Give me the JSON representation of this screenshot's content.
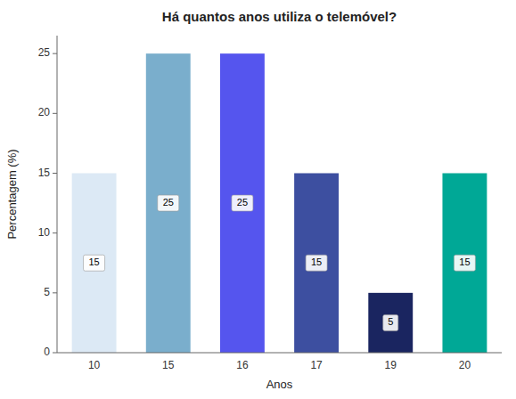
{
  "chart_data": {
    "type": "bar",
    "title": "Há quantos anos utiliza o telemóvel?",
    "xlabel": "Anos",
    "ylabel": "Percentagem (%)",
    "categories": [
      "10",
      "15",
      "16",
      "17",
      "19",
      "20"
    ],
    "values": [
      15,
      25,
      25,
      15,
      5,
      15
    ],
    "colors": [
      "#dce9f5",
      "#7aaecc",
      "#5555ee",
      "#3d4fa0",
      "#1a2560",
      "#00a896"
    ],
    "ylim": [
      0,
      26.5
    ],
    "yticks": [
      0,
      5,
      10,
      15,
      20,
      25
    ],
    "grid": false,
    "data_labels": true
  }
}
